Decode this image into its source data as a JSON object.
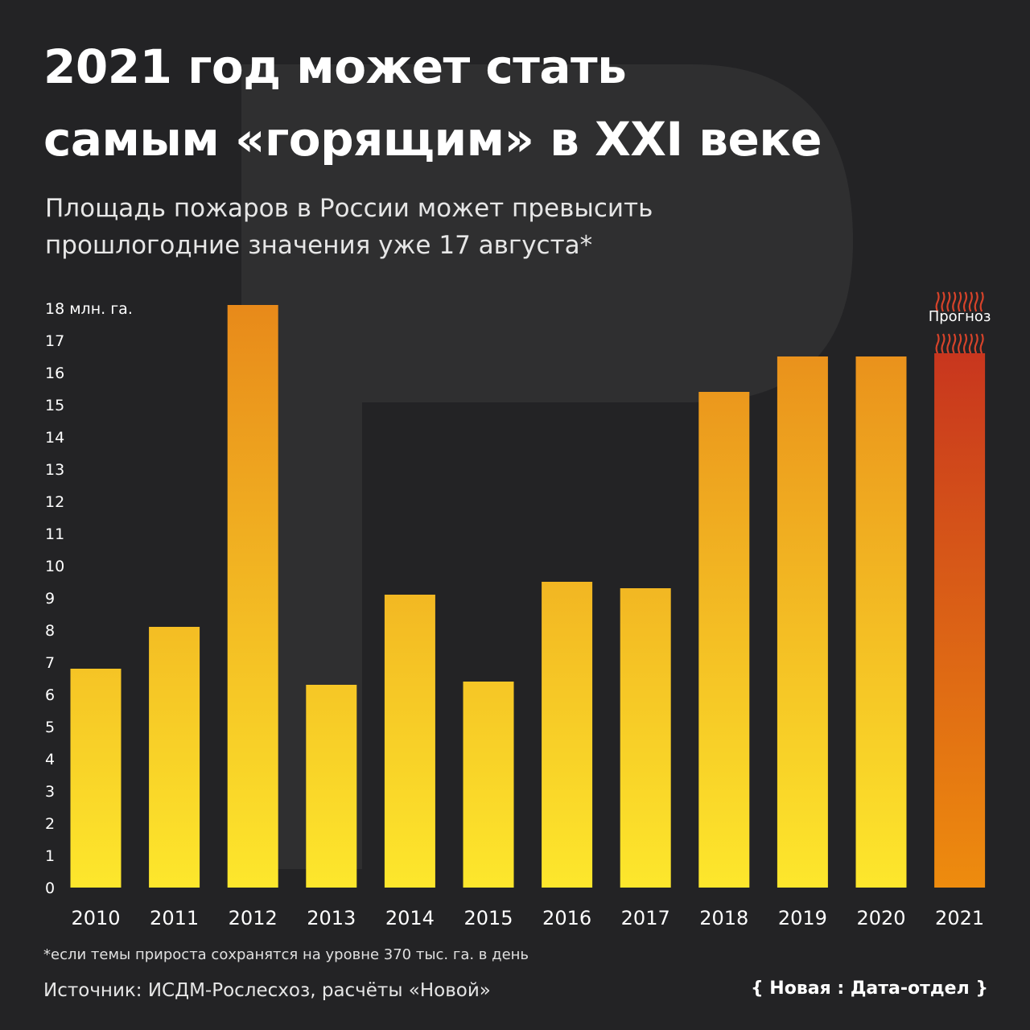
{
  "title_line1": "2021 год может стать",
  "title_line2": "самым «горящим» в XXI веке",
  "subtitle_line1": "Площадь пожаров в России может превысить",
  "subtitle_line2": "прошлогодние значения уже 17 августа*",
  "footnote": "*если темы прироста сохранятся на уровне 370 тыс. га. в день",
  "source": "Источник: ИСДМ-Рослесхоз, расчёты «Новой»",
  "logo_text": "{ Новая : Дата-отдел }",
  "colors": {
    "background": "#232325",
    "bar_top": "#e88a1a",
    "bar_bottom": "#fde72c",
    "forecast_top": "#c8361e",
    "forecast_bottom": "#ee8c0e",
    "forecast_hatch": "#d8432a"
  },
  "chart_data": {
    "type": "bar",
    "ylabel": "млн. га.",
    "ylim": [
      0,
      18
    ],
    "yticks": [
      0,
      1,
      2,
      3,
      4,
      5,
      6,
      7,
      8,
      9,
      10,
      11,
      12,
      13,
      14,
      15,
      16,
      17,
      18
    ],
    "top_tick_label": "18 млн. га.",
    "categories": [
      "2010",
      "2011",
      "2012",
      "2013",
      "2014",
      "2015",
      "2016",
      "2017",
      "2018",
      "2019",
      "2020",
      "2021"
    ],
    "values": [
      6.8,
      8.1,
      18.1,
      6.3,
      9.1,
      6.4,
      9.5,
      9.3,
      15.4,
      16.5,
      16.5,
      16.6
    ],
    "forecast": {
      "category": "2021",
      "label": "Прогноз",
      "upper_bound": 18.5
    }
  }
}
